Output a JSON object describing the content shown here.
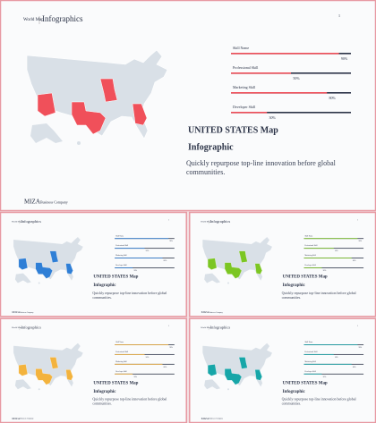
{
  "header": {
    "kicker": "World Map",
    "title": "Infographics",
    "page": "1"
  },
  "skills": [
    {
      "name": "Skill Name",
      "value": 90,
      "label": "90%"
    },
    {
      "name": "Professional Skill",
      "value": 50,
      "label": "50%"
    },
    {
      "name": "Marketing Skill",
      "value": 80,
      "label": "80%"
    },
    {
      "name": "Developer Skill",
      "value": 30,
      "label": "30%"
    }
  ],
  "content": {
    "title": "UNITED STATES Map",
    "subtitle": "Infographic",
    "body": "Quickly repurpose top-line innovation before global communities."
  },
  "footer": {
    "brand": "MIZA",
    "tagline": "Business Company"
  },
  "slides": [
    {
      "color": "#f0505a"
    },
    {
      "color": "#2f7fd6"
    },
    {
      "color": "#7cc623"
    },
    {
      "color": "#f3b33d"
    },
    {
      "color": "#17a6a8"
    }
  ]
}
